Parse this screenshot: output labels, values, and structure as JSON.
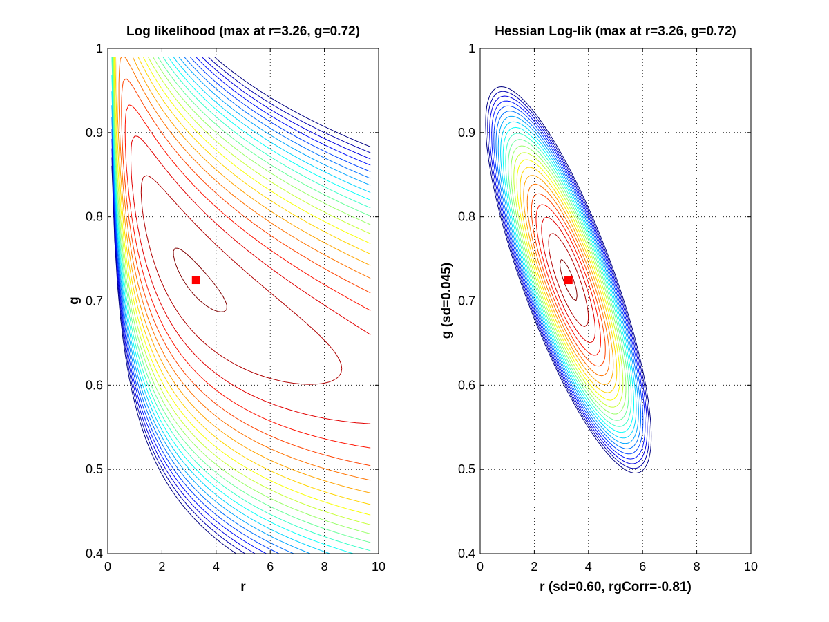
{
  "chart_data": [
    {
      "type": "contour",
      "title": "Log likelihood (max at r=3.26, g=0.72)",
      "xlabel": "r",
      "ylabel": "g",
      "xlim": [
        0,
        10
      ],
      "ylim": [
        0.4,
        1
      ],
      "x_ticks": [
        "0",
        "2",
        "4",
        "6",
        "8",
        "10"
      ],
      "y_ticks": [
        "0.4",
        "0.5",
        "0.6",
        "0.7",
        "0.8",
        "0.9",
        "1"
      ],
      "grid": true,
      "grid_style": "dotted",
      "colormap": "jet",
      "contour_levels": 22,
      "max_point": {
        "r": 3.26,
        "g": 0.725,
        "color": "#ff0000"
      },
      "shape": "skewed likelihood ridge",
      "ridge": {
        "upper_edge": [
          [
            1.0,
            1.0
          ],
          [
            9.6,
            0.63
          ]
        ],
        "lower_edge": [
          [
            0.7,
            0.95
          ],
          [
            2.0,
            0.4
          ]
        ]
      }
    },
    {
      "type": "contour",
      "title": "Hessian Log-lik (max at r=3.26, g=0.72)",
      "xlabel": "r (sd=0.60, rgCorr=-0.81)",
      "ylabel": "g (sd=0.045)",
      "xlim": [
        0,
        10
      ],
      "ylim": [
        0.4,
        1
      ],
      "x_ticks": [
        "0",
        "2",
        "4",
        "6",
        "8",
        "10"
      ],
      "y_ticks": [
        "0.4",
        "0.5",
        "0.6",
        "0.7",
        "0.8",
        "0.9",
        "1"
      ],
      "grid": true,
      "grid_style": "dotted",
      "colormap": "jet",
      "contour_levels": 22,
      "max_point": {
        "r": 3.26,
        "g": 0.725,
        "color": "#ff0000"
      },
      "shape": "elliptical (quadratic approximation)",
      "sd_r": 0.6,
      "sd_g": 0.045,
      "rg_corr": -0.81
    }
  ]
}
